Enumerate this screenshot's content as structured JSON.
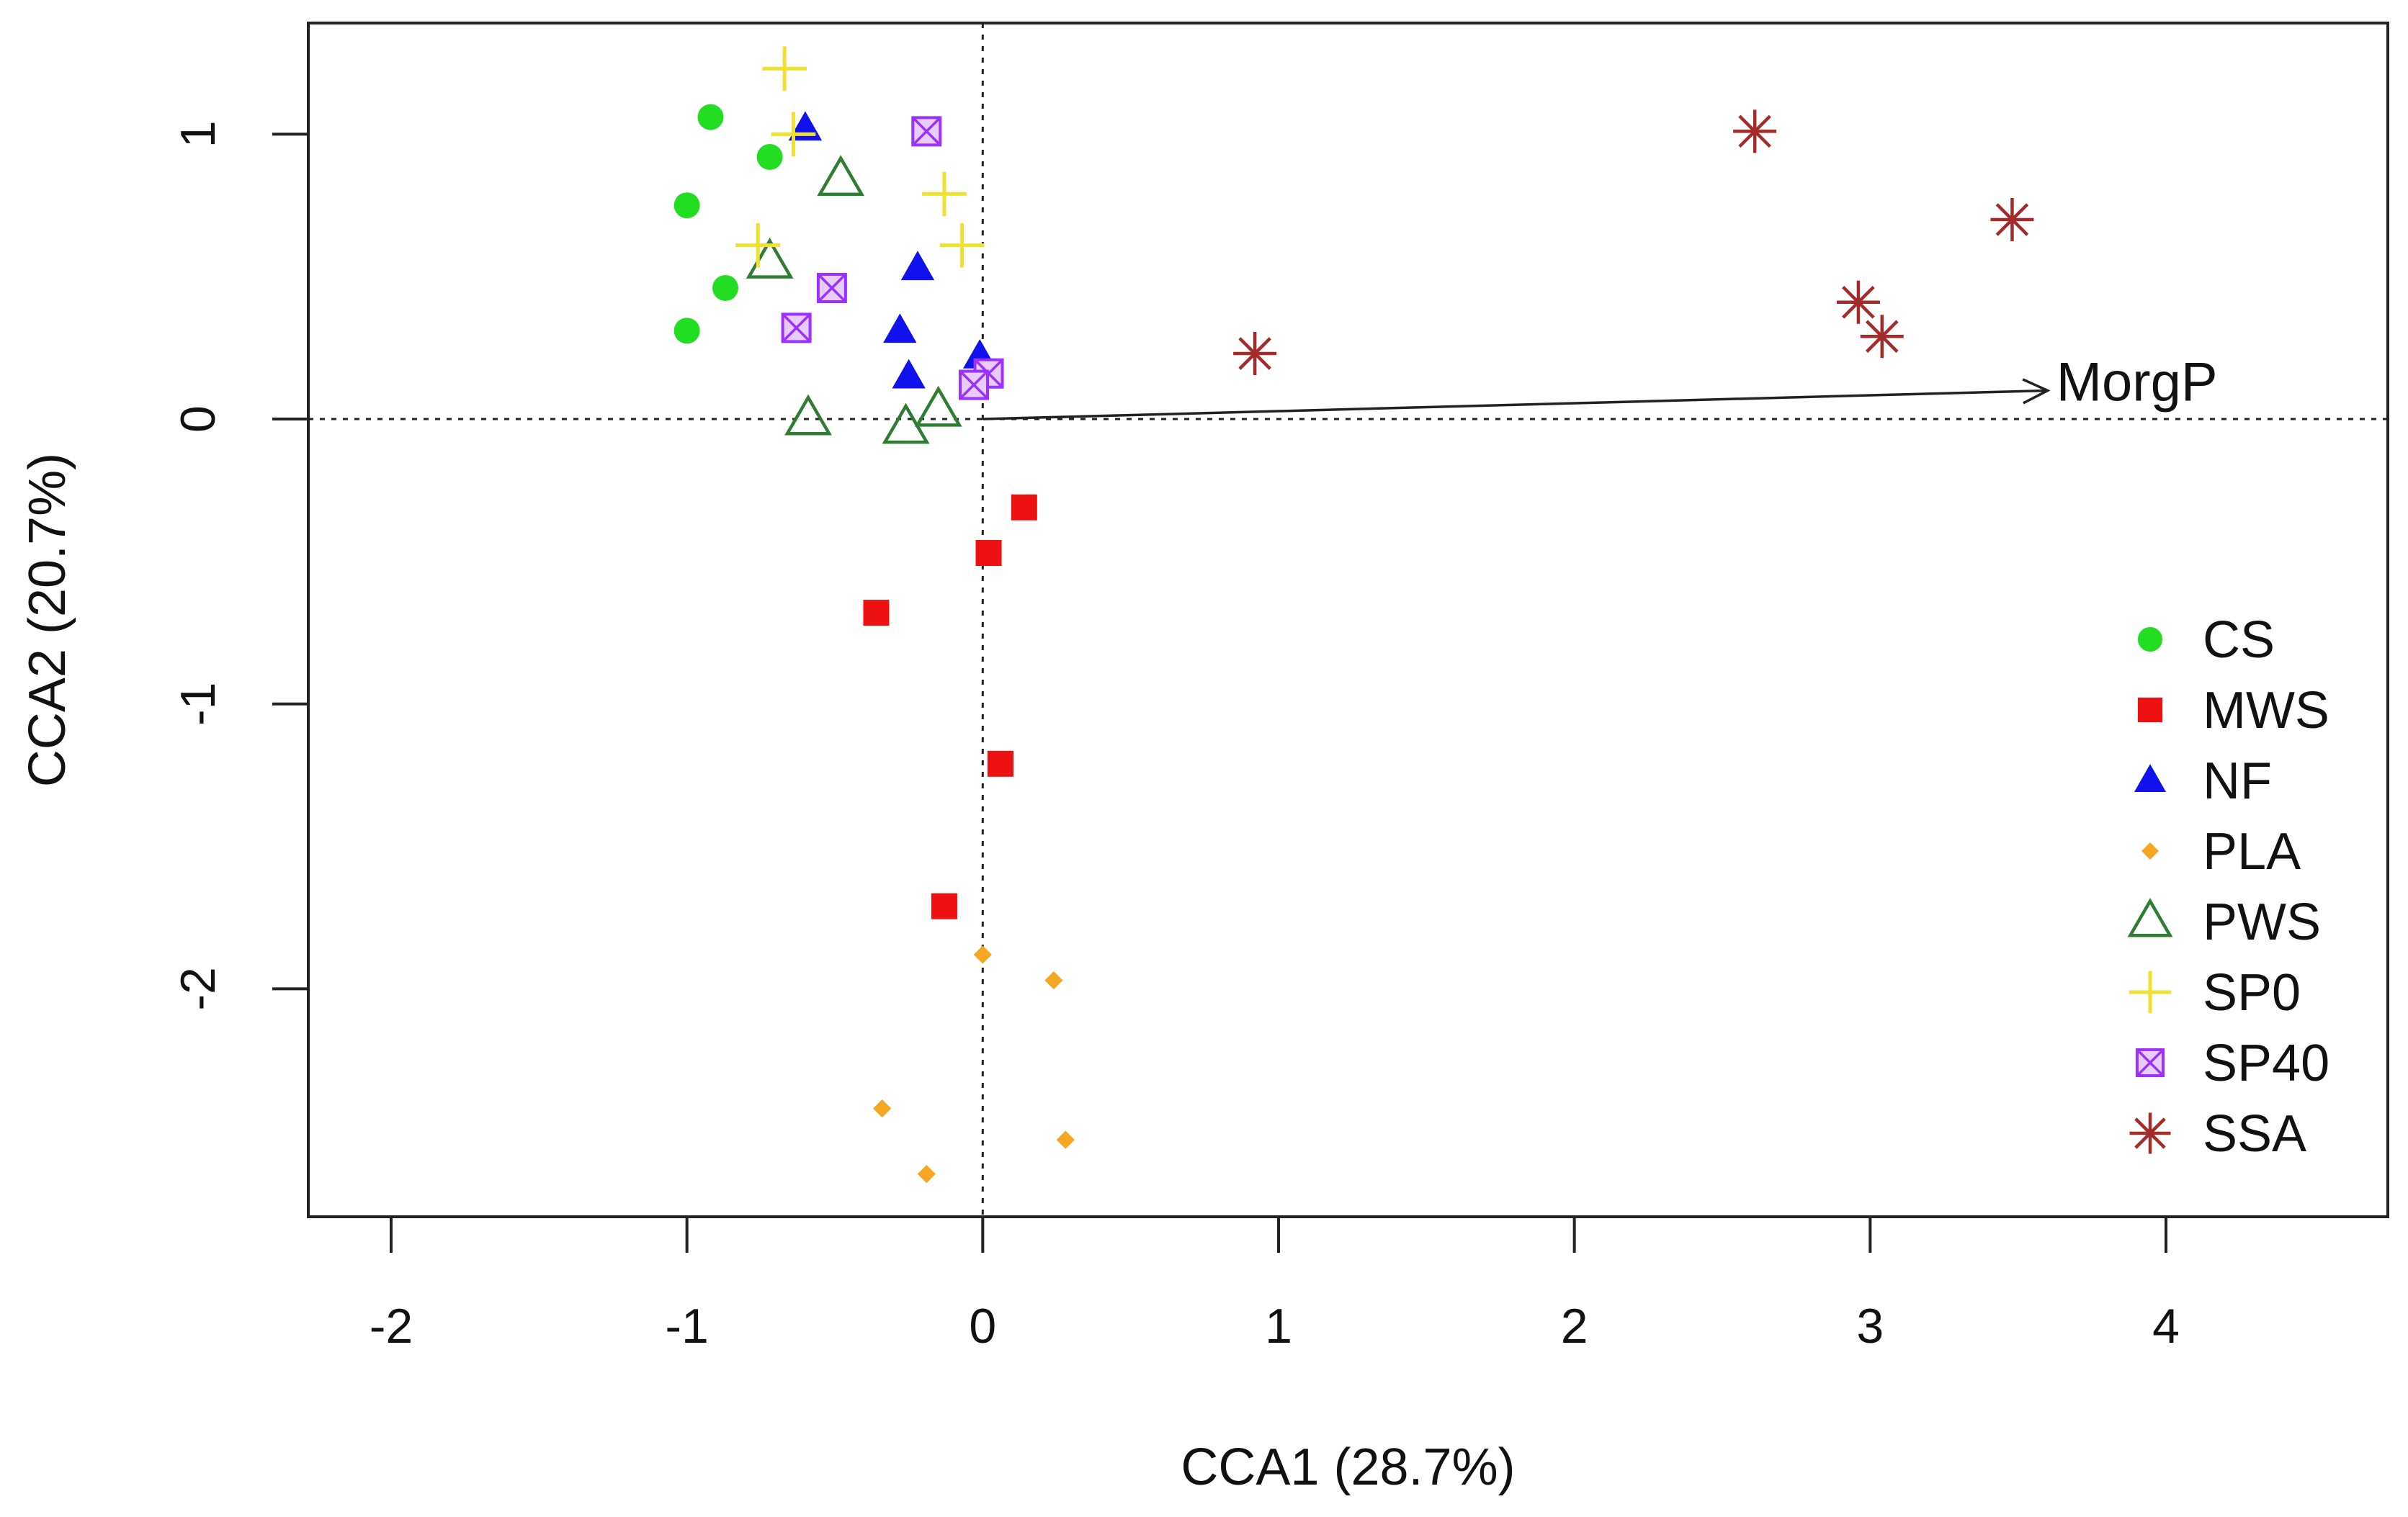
{
  "chart_data": {
    "type": "scatter",
    "title": "",
    "xlabel": "CCA1 (28.7%)",
    "ylabel": "CCA2 (20.7%)",
    "xlim": [
      -2.28,
      4.75
    ],
    "ylim": [
      -2.8,
      1.39
    ],
    "xticks": [
      -2,
      -1,
      0,
      1,
      2,
      3,
      4
    ],
    "xtick_labels": [
      "-2",
      "-1",
      "0",
      "1",
      "2",
      "3",
      "4"
    ],
    "yticks": [
      -2,
      -1,
      0,
      1
    ],
    "ytick_labels": [
      "-2",
      "-1",
      "0",
      "1"
    ],
    "reference_lines": {
      "x": 0,
      "y": 0,
      "style": "dotted"
    },
    "legend_position": "bottom-right",
    "vector": {
      "label": "MorgP",
      "from": [
        0,
        0
      ],
      "to": [
        3.6,
        0.1
      ]
    },
    "series": [
      {
        "name": "CS",
        "marker": "circle",
        "color": "#22dd22",
        "points": [
          [
            -0.92,
            1.06
          ],
          [
            -0.72,
            0.92
          ],
          [
            -1.0,
            0.75
          ],
          [
            -0.87,
            0.46
          ],
          [
            -1.0,
            0.31
          ]
        ]
      },
      {
        "name": "MWS",
        "marker": "square",
        "color": "#ee1111",
        "points": [
          [
            0.14,
            -0.31
          ],
          [
            0.02,
            -0.47
          ],
          [
            -0.36,
            -0.68
          ],
          [
            0.06,
            -1.21
          ],
          [
            -0.13,
            -1.71
          ]
        ]
      },
      {
        "name": "NF",
        "marker": "triangle",
        "color": "#1111ee",
        "points": [
          [
            -0.6,
            1.02
          ],
          [
            -0.22,
            0.53
          ],
          [
            -0.28,
            0.31
          ],
          [
            -0.25,
            0.15
          ],
          [
            -0.01,
            0.22
          ]
        ]
      },
      {
        "name": "PLA",
        "marker": "diamond",
        "color": "#f5a623",
        "points": [
          [
            0.0,
            -1.88
          ],
          [
            0.24,
            -1.97
          ],
          [
            -0.34,
            -2.42
          ],
          [
            0.28,
            -2.53
          ],
          [
            -0.19,
            -2.65
          ]
        ]
      },
      {
        "name": "PWS",
        "marker": "triangle-open",
        "color": "#2e7d32",
        "points": [
          [
            -0.48,
            0.84
          ],
          [
            -0.72,
            0.55
          ],
          [
            -0.59,
            0.0
          ],
          [
            -0.26,
            -0.03
          ],
          [
            -0.15,
            0.03
          ]
        ]
      },
      {
        "name": "SP0",
        "marker": "plus",
        "color": "#f0e030",
        "points": [
          [
            -0.67,
            1.23
          ],
          [
            -0.13,
            0.79
          ],
          [
            -0.07,
            0.61
          ],
          [
            -0.76,
            0.61
          ],
          [
            -0.64,
            1.0
          ]
        ]
      },
      {
        "name": "SP40",
        "marker": "boxed-x",
        "color": "#9b30ff",
        "points": [
          [
            -0.19,
            1.01
          ],
          [
            -0.51,
            0.46
          ],
          [
            -0.63,
            0.32
          ],
          [
            0.02,
            0.16
          ],
          [
            -0.03,
            0.12
          ]
        ]
      },
      {
        "name": "SSA",
        "marker": "asterisk",
        "color": "#a52a2a",
        "points": [
          [
            2.61,
            1.01
          ],
          [
            3.48,
            0.7
          ],
          [
            2.96,
            0.41
          ],
          [
            3.04,
            0.29
          ],
          [
            0.92,
            0.23
          ]
        ]
      }
    ]
  }
}
